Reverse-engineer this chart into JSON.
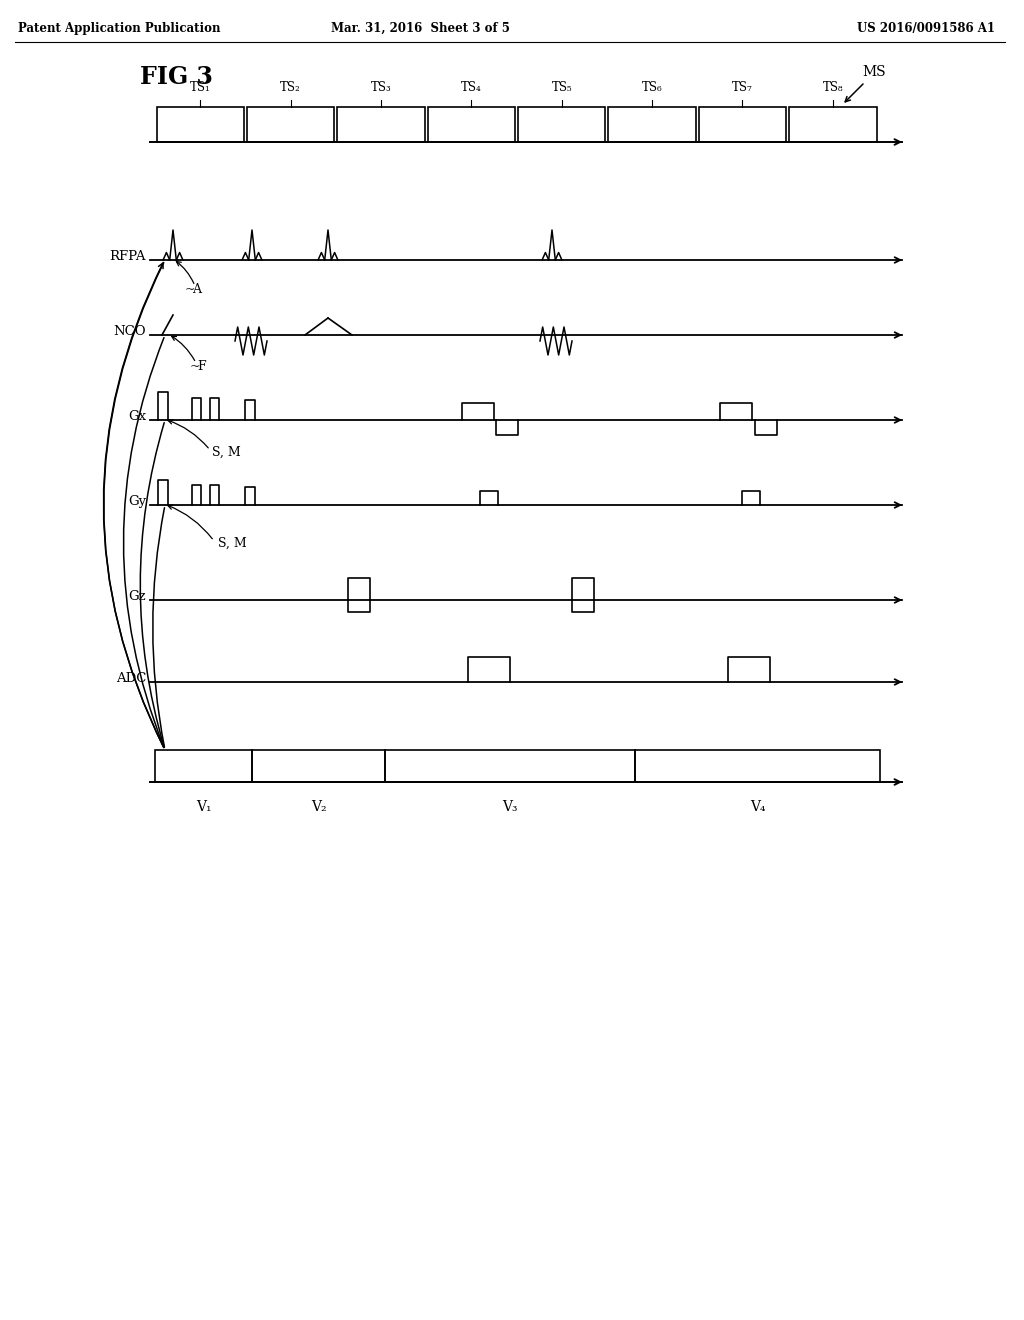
{
  "title": "FIG 3",
  "header_left": "Patent Application Publication",
  "header_mid": "Mar. 31, 2016  Sheet 3 of 5",
  "header_right": "US 2016/0091586 A1",
  "background_color": "#ffffff",
  "text_color": "#000000",
  "ts_labels": [
    "TS₁",
    "TS₂",
    "TS₃",
    "TS₄",
    "TS₅",
    "TS₆",
    "TS₇",
    "TS₈"
  ],
  "v_labels": [
    "V₁",
    "V₂",
    "V₃",
    "V₄"
  ],
  "row_labels": [
    "RFPA",
    "NCO",
    "Gx",
    "Gy",
    "Gz",
    "ADC"
  ],
  "fig_label": "FIG 3",
  "ms_label": "MS"
}
